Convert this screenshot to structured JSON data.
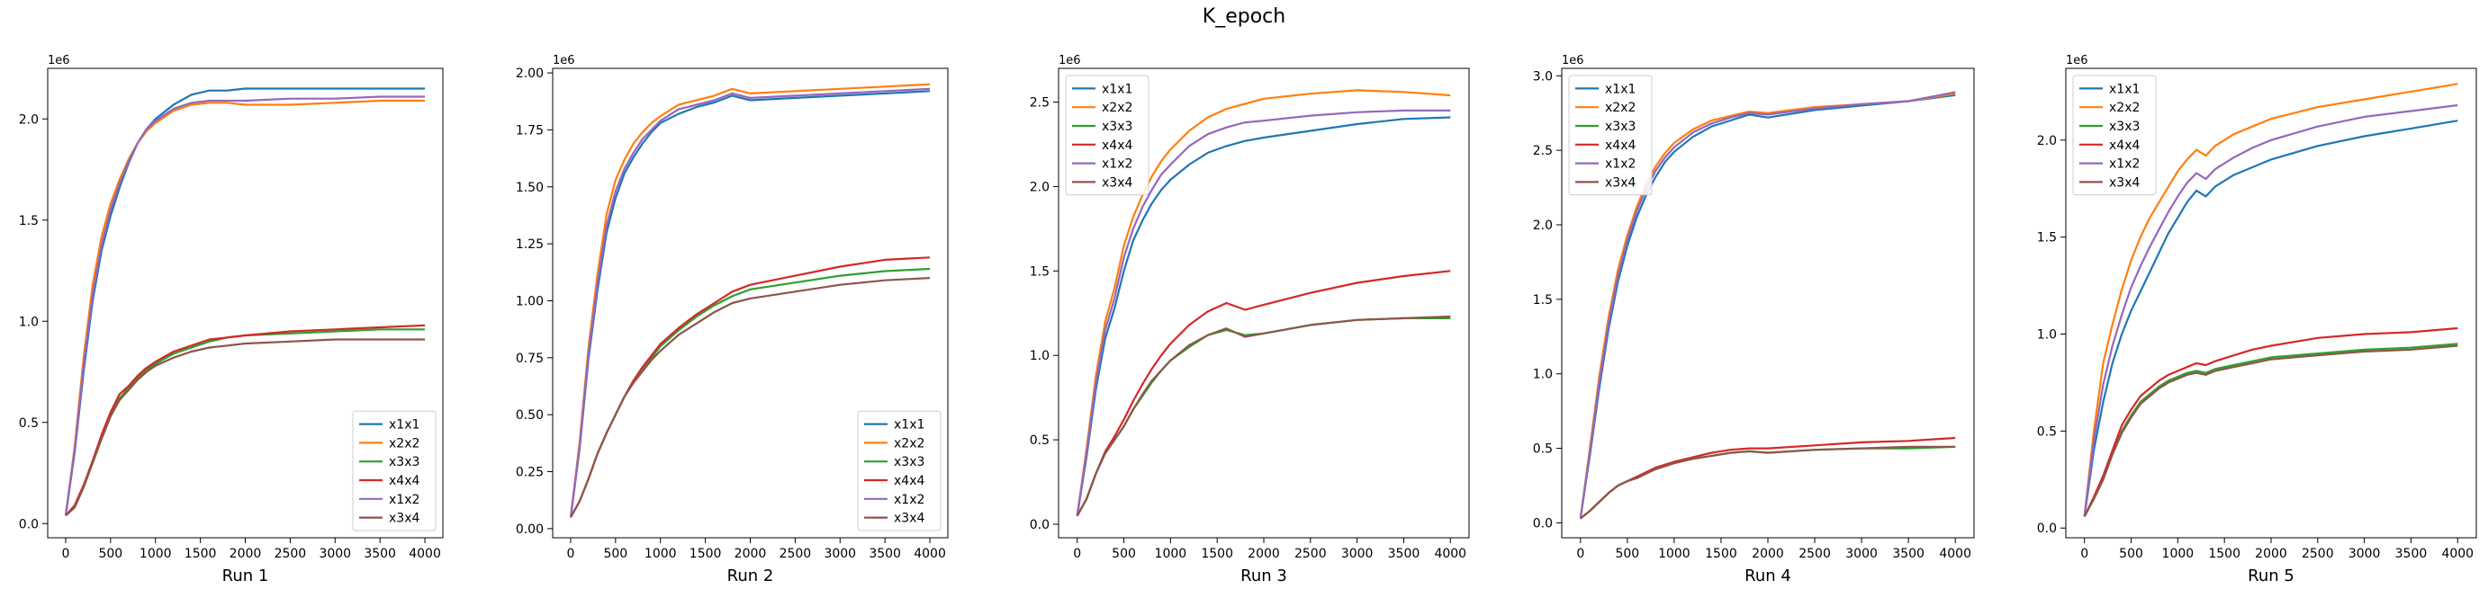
{
  "figure": {
    "title": "K_epoch"
  },
  "colors": [
    "#1f77b4",
    "#ff7f0e",
    "#2ca02c",
    "#d62728",
    "#9467bd",
    "#8c564b"
  ],
  "chart_data": [
    {
      "type": "line",
      "xlabel": "Run 1",
      "offset_text": "1e6",
      "xlim": [
        -200,
        4200
      ],
      "ylim": [
        -0.07,
        2.25
      ],
      "xticks": [
        0,
        500,
        1000,
        1500,
        2000,
        2500,
        3000,
        3500,
        4000
      ],
      "yticks": [
        0.0,
        0.5,
        1.0,
        1.5,
        2.0
      ],
      "ytick_labels": [
        "0.0",
        "0.5",
        "1.0",
        "1.5",
        "2.0"
      ],
      "legend": "lower-right",
      "x": [
        0,
        100,
        200,
        300,
        400,
        500,
        600,
        700,
        800,
        900,
        1000,
        1200,
        1400,
        1600,
        1800,
        2000,
        2500,
        3000,
        3500,
        4000
      ],
      "series": [
        {
          "name": "x1x1",
          "values": [
            0.04,
            0.35,
            0.75,
            1.1,
            1.35,
            1.52,
            1.66,
            1.78,
            1.88,
            1.95,
            2.0,
            2.07,
            2.12,
            2.14,
            2.14,
            2.15,
            2.15,
            2.15,
            2.15,
            2.15
          ]
        },
        {
          "name": "x2x2",
          "values": [
            0.04,
            0.38,
            0.82,
            1.18,
            1.42,
            1.58,
            1.7,
            1.8,
            1.88,
            1.94,
            1.98,
            2.04,
            2.07,
            2.08,
            2.08,
            2.07,
            2.07,
            2.08,
            2.09,
            2.09
          ]
        },
        {
          "name": "x3x3",
          "values": [
            0.04,
            0.08,
            0.18,
            0.3,
            0.42,
            0.53,
            0.62,
            0.67,
            0.72,
            0.76,
            0.79,
            0.84,
            0.87,
            0.9,
            0.92,
            0.93,
            0.94,
            0.95,
            0.96,
            0.96
          ]
        },
        {
          "name": "x4x4",
          "values": [
            0.04,
            0.09,
            0.19,
            0.31,
            0.44,
            0.55,
            0.64,
            0.68,
            0.73,
            0.77,
            0.8,
            0.85,
            0.88,
            0.91,
            0.92,
            0.93,
            0.95,
            0.96,
            0.97,
            0.98
          ]
        },
        {
          "name": "x1x2",
          "values": [
            0.04,
            0.36,
            0.78,
            1.13,
            1.38,
            1.55,
            1.68,
            1.79,
            1.88,
            1.95,
            1.99,
            2.05,
            2.08,
            2.09,
            2.09,
            2.09,
            2.1,
            2.1,
            2.11,
            2.11
          ]
        },
        {
          "name": "x3x4",
          "values": [
            0.04,
            0.08,
            0.18,
            0.3,
            0.42,
            0.53,
            0.61,
            0.66,
            0.71,
            0.75,
            0.78,
            0.82,
            0.85,
            0.87,
            0.88,
            0.89,
            0.9,
            0.91,
            0.91,
            0.91
          ]
        }
      ]
    },
    {
      "type": "line",
      "xlabel": "Run 2",
      "offset_text": "1e6",
      "xlim": [
        -200,
        4200
      ],
      "ylim": [
        -0.04,
        2.02
      ],
      "xticks": [
        0,
        500,
        1000,
        1500,
        2000,
        2500,
        3000,
        3500,
        4000
      ],
      "yticks": [
        0.0,
        0.25,
        0.5,
        0.75,
        1.0,
        1.25,
        1.5,
        1.75,
        2.0
      ],
      "ytick_labels": [
        "0.00",
        "0.25",
        "0.50",
        "0.75",
        "1.00",
        "1.25",
        "1.50",
        "1.75",
        "2.00"
      ],
      "legend": "lower-right",
      "x": [
        0,
        100,
        200,
        300,
        400,
        500,
        600,
        700,
        800,
        900,
        1000,
        1200,
        1400,
        1600,
        1800,
        2000,
        2500,
        3000,
        3500,
        4000
      ],
      "series": [
        {
          "name": "x1x1",
          "values": [
            0.05,
            0.35,
            0.75,
            1.05,
            1.3,
            1.45,
            1.56,
            1.63,
            1.69,
            1.74,
            1.78,
            1.82,
            1.85,
            1.87,
            1.9,
            1.88,
            1.89,
            1.9,
            1.91,
            1.92
          ]
        },
        {
          "name": "x2x2",
          "values": [
            0.05,
            0.38,
            0.8,
            1.12,
            1.38,
            1.53,
            1.62,
            1.69,
            1.74,
            1.78,
            1.81,
            1.86,
            1.88,
            1.9,
            1.93,
            1.91,
            1.92,
            1.93,
            1.94,
            1.95
          ]
        },
        {
          "name": "x3x3",
          "values": [
            0.05,
            0.12,
            0.22,
            0.33,
            0.42,
            0.5,
            0.58,
            0.65,
            0.7,
            0.75,
            0.8,
            0.87,
            0.93,
            0.98,
            1.02,
            1.05,
            1.08,
            1.11,
            1.13,
            1.14
          ]
        },
        {
          "name": "x4x4",
          "values": [
            0.05,
            0.12,
            0.22,
            0.33,
            0.42,
            0.5,
            0.58,
            0.65,
            0.71,
            0.76,
            0.81,
            0.88,
            0.94,
            0.99,
            1.04,
            1.07,
            1.11,
            1.15,
            1.18,
            1.19
          ]
        },
        {
          "name": "x1x2",
          "values": [
            0.05,
            0.36,
            0.77,
            1.08,
            1.33,
            1.48,
            1.58,
            1.65,
            1.71,
            1.75,
            1.79,
            1.84,
            1.86,
            1.88,
            1.91,
            1.89,
            1.9,
            1.91,
            1.92,
            1.93
          ]
        },
        {
          "name": "x3x4",
          "values": [
            0.05,
            0.12,
            0.22,
            0.33,
            0.42,
            0.5,
            0.58,
            0.64,
            0.69,
            0.74,
            0.78,
            0.85,
            0.9,
            0.95,
            0.99,
            1.01,
            1.04,
            1.07,
            1.09,
            1.1
          ]
        }
      ]
    },
    {
      "type": "line",
      "xlabel": "Run 3",
      "offset_text": "1e6",
      "xlim": [
        -200,
        4200
      ],
      "ylim": [
        -0.08,
        2.7
      ],
      "xticks": [
        0,
        500,
        1000,
        1500,
        2000,
        2500,
        3000,
        3500,
        4000
      ],
      "yticks": [
        0.0,
        0.5,
        1.0,
        1.5,
        2.0,
        2.5
      ],
      "ytick_labels": [
        "0.0",
        "0.5",
        "1.0",
        "1.5",
        "2.0",
        "2.5"
      ],
      "legend": "upper-left",
      "x": [
        0,
        100,
        200,
        300,
        400,
        500,
        600,
        700,
        800,
        900,
        1000,
        1200,
        1400,
        1600,
        1800,
        2000,
        2500,
        3000,
        3500,
        4000
      ],
      "series": [
        {
          "name": "x1x1",
          "values": [
            0.05,
            0.4,
            0.8,
            1.1,
            1.28,
            1.5,
            1.68,
            1.8,
            1.9,
            1.98,
            2.04,
            2.13,
            2.2,
            2.24,
            2.27,
            2.29,
            2.33,
            2.37,
            2.4,
            2.41
          ]
        },
        {
          "name": "x2x2",
          "values": [
            0.05,
            0.45,
            0.88,
            1.2,
            1.4,
            1.65,
            1.82,
            1.95,
            2.06,
            2.15,
            2.22,
            2.33,
            2.41,
            2.46,
            2.49,
            2.52,
            2.55,
            2.57,
            2.56,
            2.54
          ]
        },
        {
          "name": "x3x3",
          "values": [
            0.05,
            0.15,
            0.3,
            0.42,
            0.5,
            0.58,
            0.68,
            0.76,
            0.84,
            0.91,
            0.97,
            1.05,
            1.12,
            1.15,
            1.12,
            1.13,
            1.18,
            1.21,
            1.22,
            1.22
          ]
        },
        {
          "name": "x4x4",
          "values": [
            0.05,
            0.15,
            0.3,
            0.43,
            0.52,
            0.62,
            0.73,
            0.83,
            0.92,
            1.0,
            1.07,
            1.18,
            1.26,
            1.31,
            1.27,
            1.3,
            1.37,
            1.43,
            1.47,
            1.5
          ]
        },
        {
          "name": "x1x2",
          "values": [
            0.05,
            0.42,
            0.84,
            1.15,
            1.34,
            1.58,
            1.75,
            1.88,
            1.98,
            2.07,
            2.13,
            2.24,
            2.31,
            2.35,
            2.38,
            2.39,
            2.42,
            2.44,
            2.45,
            2.45
          ]
        },
        {
          "name": "x3x4",
          "values": [
            0.05,
            0.15,
            0.3,
            0.42,
            0.5,
            0.58,
            0.68,
            0.77,
            0.85,
            0.91,
            0.97,
            1.06,
            1.12,
            1.16,
            1.11,
            1.13,
            1.18,
            1.21,
            1.22,
            1.23
          ]
        }
      ]
    },
    {
      "type": "line",
      "xlabel": "Run 4",
      "offset_text": "1e6",
      "xlim": [
        -200,
        4200
      ],
      "ylim": [
        -0.1,
        3.05
      ],
      "xticks": [
        0,
        500,
        1000,
        1500,
        2000,
        2500,
        3000,
        3500,
        4000
      ],
      "yticks": [
        0.0,
        0.5,
        1.0,
        1.5,
        2.0,
        2.5,
        3.0
      ],
      "ytick_labels": [
        "0.0",
        "0.5",
        "1.0",
        "1.5",
        "2.0",
        "2.5",
        "3.0"
      ],
      "legend": "upper-left",
      "x": [
        0,
        100,
        200,
        300,
        400,
        500,
        600,
        700,
        800,
        900,
        1000,
        1200,
        1400,
        1600,
        1800,
        2000,
        2500,
        3000,
        3500,
        4000
      ],
      "series": [
        {
          "name": "x1x1",
          "values": [
            0.03,
            0.45,
            0.9,
            1.3,
            1.62,
            1.86,
            2.05,
            2.2,
            2.32,
            2.42,
            2.49,
            2.59,
            2.66,
            2.7,
            2.74,
            2.72,
            2.77,
            2.8,
            2.83,
            2.87
          ]
        },
        {
          "name": "x2x2",
          "values": [
            0.03,
            0.5,
            0.98,
            1.38,
            1.7,
            1.93,
            2.12,
            2.27,
            2.39,
            2.48,
            2.55,
            2.64,
            2.7,
            2.73,
            2.76,
            2.75,
            2.79,
            2.81,
            2.83,
            2.88
          ]
        },
        {
          "name": "x3x3",
          "values": [
            0.03,
            0.08,
            0.14,
            0.2,
            0.25,
            0.28,
            0.3,
            0.33,
            0.36,
            0.38,
            0.4,
            0.43,
            0.45,
            0.47,
            0.48,
            0.47,
            0.49,
            0.5,
            0.5,
            0.51
          ]
        },
        {
          "name": "x4x4",
          "values": [
            0.03,
            0.08,
            0.14,
            0.2,
            0.25,
            0.28,
            0.31,
            0.34,
            0.37,
            0.39,
            0.41,
            0.44,
            0.47,
            0.49,
            0.5,
            0.5,
            0.52,
            0.54,
            0.55,
            0.57
          ]
        },
        {
          "name": "x1x2",
          "values": [
            0.03,
            0.47,
            0.94,
            1.34,
            1.66,
            1.9,
            2.09,
            2.24,
            2.36,
            2.45,
            2.52,
            2.62,
            2.68,
            2.72,
            2.75,
            2.74,
            2.78,
            2.81,
            2.83,
            2.89
          ]
        },
        {
          "name": "x3x4",
          "values": [
            0.03,
            0.08,
            0.14,
            0.2,
            0.25,
            0.28,
            0.3,
            0.33,
            0.36,
            0.38,
            0.4,
            0.43,
            0.45,
            0.47,
            0.48,
            0.47,
            0.49,
            0.5,
            0.51,
            0.51
          ]
        }
      ]
    },
    {
      "type": "line",
      "xlabel": "Run 5",
      "offset_text": "1e6",
      "xlim": [
        -200,
        4200
      ],
      "ylim": [
        -0.05,
        2.37
      ],
      "xticks": [
        0,
        500,
        1000,
        1500,
        2000,
        2500,
        3000,
        3500,
        4000
      ],
      "yticks": [
        0.0,
        0.5,
        1.0,
        1.5,
        2.0
      ],
      "ytick_labels": [
        "0.0",
        "0.5",
        "1.0",
        "1.5",
        "2.0"
      ],
      "legend": "upper-left",
      "x": [
        0,
        100,
        200,
        300,
        400,
        500,
        600,
        700,
        800,
        900,
        1000,
        1100,
        1200,
        1300,
        1400,
        1600,
        1800,
        2000,
        2500,
        3000,
        3500,
        4000
      ],
      "series": [
        {
          "name": "x1x1",
          "values": [
            0.06,
            0.4,
            0.65,
            0.85,
            1.0,
            1.12,
            1.22,
            1.32,
            1.42,
            1.52,
            1.6,
            1.68,
            1.74,
            1.71,
            1.76,
            1.82,
            1.86,
            1.9,
            1.97,
            2.02,
            2.06,
            2.1
          ]
        },
        {
          "name": "x2x2",
          "values": [
            0.06,
            0.5,
            0.85,
            1.05,
            1.23,
            1.38,
            1.5,
            1.6,
            1.68,
            1.76,
            1.84,
            1.9,
            1.95,
            1.92,
            1.97,
            2.03,
            2.07,
            2.11,
            2.17,
            2.21,
            2.25,
            2.29
          ]
        },
        {
          "name": "x3x3",
          "values": [
            0.06,
            0.15,
            0.25,
            0.38,
            0.5,
            0.58,
            0.65,
            0.69,
            0.73,
            0.76,
            0.78,
            0.8,
            0.81,
            0.8,
            0.82,
            0.84,
            0.86,
            0.88,
            0.9,
            0.92,
            0.93,
            0.95
          ]
        },
        {
          "name": "x4x4",
          "values": [
            0.06,
            0.16,
            0.27,
            0.4,
            0.53,
            0.61,
            0.68,
            0.72,
            0.76,
            0.79,
            0.81,
            0.83,
            0.85,
            0.84,
            0.86,
            0.89,
            0.92,
            0.94,
            0.98,
            1.0,
            1.01,
            1.03
          ]
        },
        {
          "name": "x1x2",
          "values": [
            0.06,
            0.45,
            0.74,
            0.94,
            1.1,
            1.24,
            1.35,
            1.45,
            1.54,
            1.63,
            1.71,
            1.78,
            1.83,
            1.8,
            1.85,
            1.91,
            1.96,
            2.0,
            2.07,
            2.12,
            2.15,
            2.18
          ]
        },
        {
          "name": "x3x4",
          "values": [
            0.06,
            0.15,
            0.25,
            0.38,
            0.49,
            0.57,
            0.64,
            0.68,
            0.72,
            0.75,
            0.77,
            0.79,
            0.8,
            0.79,
            0.81,
            0.83,
            0.85,
            0.87,
            0.89,
            0.91,
            0.92,
            0.94
          ]
        }
      ]
    }
  ]
}
